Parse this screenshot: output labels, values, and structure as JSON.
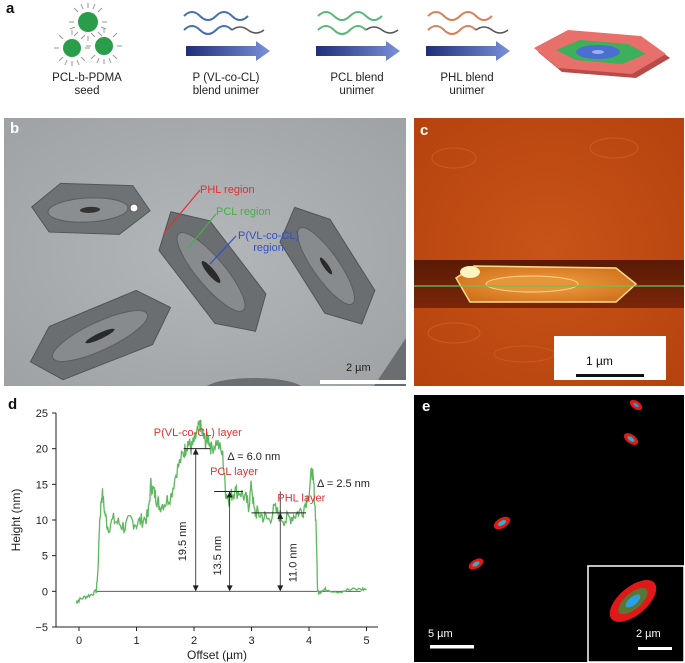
{
  "panel_letters": {
    "a": "a",
    "b": "b",
    "c": "c",
    "d": "d",
    "e": "e"
  },
  "panel_a": {
    "captions": [
      {
        "line1": "PCL-b-PDMA",
        "line2": "seed"
      },
      {
        "line1": "P (VL-co-CL)",
        "line2": "blend unimer"
      },
      {
        "line1": "PCL blend",
        "line2": "unimer"
      },
      {
        "line1": "PHL blend",
        "line2": "unimer"
      }
    ],
    "colors": {
      "blue": "#4a6fb0",
      "green": "#5cb87a",
      "orange": "#d6825a",
      "arrow": "#2c3f8a",
      "pink": "#e8706a",
      "hexgreen": "#3cb05a",
      "core": "#4a6fd0"
    }
  },
  "panel_b": {
    "labels": {
      "phl": "PHL region",
      "pcl": "PCL region",
      "pvl_line1": "P(VL-co-CL)",
      "pvl_line2": "region"
    },
    "scale_bar": "2 µm",
    "colors": {
      "phl": "#e03030",
      "pcl": "#44b044",
      "pvl": "#3050c8"
    }
  },
  "panel_c": {
    "scale_bar": "1 µm"
  },
  "panel_e": {
    "scale_bar_main": "5 µm",
    "scale_bar_inset": "2 µm"
  },
  "chart_data": {
    "type": "line",
    "xlabel": "Offset (µm)",
    "ylabel": "Height (nm)",
    "xlim": [
      -0.4,
      5.2
    ],
    "ylim": [
      -5,
      25
    ],
    "xticks": [
      "0",
      "1",
      "2",
      "3",
      "4",
      "5"
    ],
    "yticks": [
      "−5",
      "0",
      "5",
      "10",
      "15",
      "20",
      "25"
    ],
    "series": [
      {
        "color": "#5cb85c",
        "x": [
          -0.05,
          0.0,
          0.1,
          0.2,
          0.3,
          0.33,
          0.36,
          0.4,
          0.45,
          0.5,
          0.6,
          0.7,
          0.8,
          0.9,
          1.0,
          1.1,
          1.2,
          1.25,
          1.3,
          1.35,
          1.4,
          1.5,
          1.6,
          1.7,
          1.8,
          1.85,
          1.9,
          1.95,
          2.0,
          2.05,
          2.1,
          2.15,
          2.2,
          2.25,
          2.3,
          2.4,
          2.5,
          2.55,
          2.6,
          2.65,
          2.7,
          2.8,
          2.9,
          2.95,
          3.0,
          3.05,
          3.1,
          3.2,
          3.3,
          3.4,
          3.5,
          3.6,
          3.7,
          3.8,
          3.9,
          4.0,
          4.05,
          4.08,
          4.12,
          4.15,
          4.2,
          4.3,
          4.5,
          4.7,
          4.9,
          5.0
        ],
        "y": [
          -1.5,
          -1.2,
          -0.8,
          -0.5,
          0,
          3,
          10,
          14,
          11,
          9,
          10,
          9.5,
          9,
          10,
          9.5,
          10,
          10.5,
          15,
          14,
          13,
          12,
          12.5,
          13.5,
          17,
          19,
          20,
          21,
          20,
          21,
          22,
          23.5,
          22,
          21,
          21.5,
          20,
          21,
          19,
          14,
          13,
          13.5,
          14,
          14,
          13,
          12,
          15,
          11,
          11,
          10.5,
          10,
          11.5,
          10.5,
          10,
          10.5,
          11,
          11.5,
          14,
          17,
          15,
          10,
          0,
          0,
          0.3,
          0,
          0.2,
          0.3,
          0.3
        ]
      }
    ],
    "annotations": {
      "pvl_layer": "P(VL-co-CL) layer",
      "pcl_layer": "PCL layer",
      "phl_layer": "PHL layer",
      "delta1": "Δ = 6.0 nm",
      "delta2": "Δ = 2.5 nm",
      "h1": "19.5 nm",
      "h2": "13.5 nm",
      "h3": "11.0 nm"
    }
  }
}
